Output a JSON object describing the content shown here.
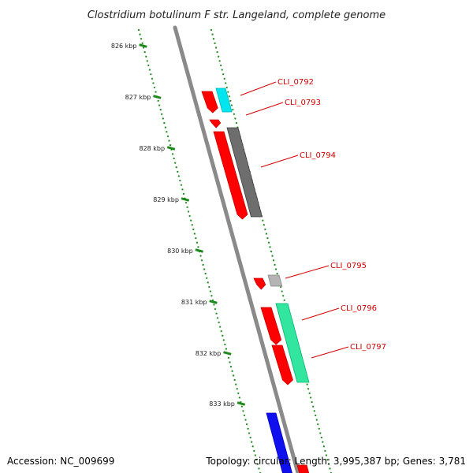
{
  "title": "Clostridium botulinum F str. Langeland, complete genome",
  "footer": {
    "accession": "Accession: NC_009699",
    "summary": "Topology: circular; Length: 3,995,387 bp; Genes: 3,781"
  },
  "colors": {
    "backbone": "#8a8a8a",
    "tick_dots": "#1e8a1e",
    "label": "#d40000",
    "gene_red": "#ff0000",
    "gene_cyan": "#00e5ee",
    "gene_darkgray": "#6e6e6e",
    "gene_lightgray": "#b4b4b4",
    "gene_mint": "#33e6a0",
    "gene_blue": "#1010ee"
  },
  "ticks": [
    "826 kbp",
    "827 kbp",
    "828 kbp",
    "829 kbp",
    "830 kbp",
    "831 kbp",
    "832 kbp",
    "833 kbp"
  ],
  "gene_labels": [
    "CLI_0792",
    "CLI_0793",
    "CLI_0794",
    "CLI_0795",
    "CLI_0796",
    "CLI_0797"
  ]
}
